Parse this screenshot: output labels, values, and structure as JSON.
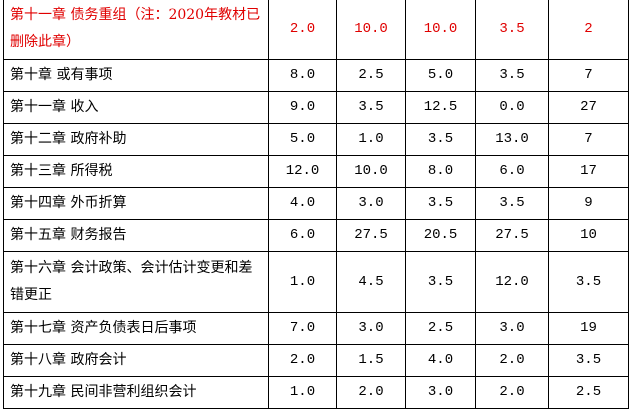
{
  "table": {
    "rows": [
      [
        "第十一章 债务重组（注：2020年教材已删除此章）",
        "2.0",
        "10.0",
        "10.0",
        "3.5",
        "2"
      ],
      [
        "第十章 或有事项",
        "8.0",
        "2.5",
        "5.0",
        "3.5",
        "7"
      ],
      [
        "第十一章 收入",
        "9.0",
        "3.5",
        "12.5",
        "0.0",
        "27"
      ],
      [
        "第十二章 政府补助",
        "5.0",
        "1.0",
        "3.5",
        "13.0",
        "7"
      ],
      [
        "第十三章 所得税",
        "12.0",
        "10.0",
        "8.0",
        "6.0",
        "17"
      ],
      [
        "第十四章 外币折算",
        "4.0",
        "3.0",
        "3.5",
        "3.5",
        "9"
      ],
      [
        "第十五章 财务报告",
        "6.0",
        "27.5",
        "20.5",
        "27.5",
        "10"
      ],
      [
        "第十六章 会计政策、会计估计变更和差错更正",
        "1.0",
        "4.5",
        "3.5",
        "12.0",
        "3.5"
      ],
      [
        "第十七章 资产负债表日后事项",
        "7.0",
        "3.0",
        "2.5",
        "3.0",
        "19"
      ],
      [
        "第十八章 政府会计",
        "2.0",
        "1.5",
        "4.0",
        "2.0",
        "3.5"
      ],
      [
        "第十九章 民间非营利组织会计",
        "1.0",
        "2.0",
        "3.0",
        "2.0",
        "2.5"
      ]
    ]
  }
}
